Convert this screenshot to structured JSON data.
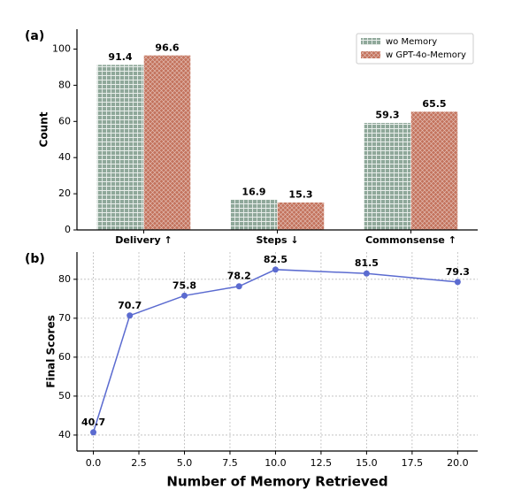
{
  "chart_data": [
    {
      "type": "bar",
      "panel_label": "(a)",
      "ylabel": "Count",
      "categories": [
        "Delivery ↑",
        "Steps ↓",
        "Commonsense ↑"
      ],
      "series": [
        {
          "name": "wo Memory",
          "color": "#8fa89a",
          "hatch": "+",
          "values": [
            91.4,
            16.9,
            59.3
          ]
        },
        {
          "name": "w GPT-4o-Memory",
          "color": "#c3735d",
          "hatch": "x",
          "values": [
            96.6,
            15.3,
            65.5
          ]
        }
      ],
      "ylim": [
        0,
        111
      ],
      "yticks": [
        0,
        20,
        40,
        60,
        80,
        100
      ],
      "grid": false,
      "legend": "upper right"
    },
    {
      "type": "line",
      "panel_label": "(b)",
      "ylabel": "Final Scores",
      "xlabel": "Number of Memory Retrieved",
      "x": [
        0,
        2,
        5,
        8,
        10,
        15,
        20
      ],
      "values": [
        40.7,
        70.7,
        75.8,
        78.2,
        82.5,
        81.5,
        79.3
      ],
      "color": "#5b6bd0",
      "xlim": [
        -0.9,
        21.1
      ],
      "xticks": [
        {
          "value": 0,
          "label": "0.0"
        },
        2.5,
        {
          "value": 5,
          "label": "5.0"
        },
        7.5,
        {
          "value": 10,
          "label": "10.0"
        },
        12.5,
        {
          "value": 15,
          "label": "15.0"
        },
        17.5,
        {
          "value": 20,
          "label": "20.0"
        }
      ],
      "ylim": [
        35.9,
        87
      ],
      "yticks": [
        40,
        50,
        60,
        70,
        80
      ],
      "grid": true
    }
  ]
}
